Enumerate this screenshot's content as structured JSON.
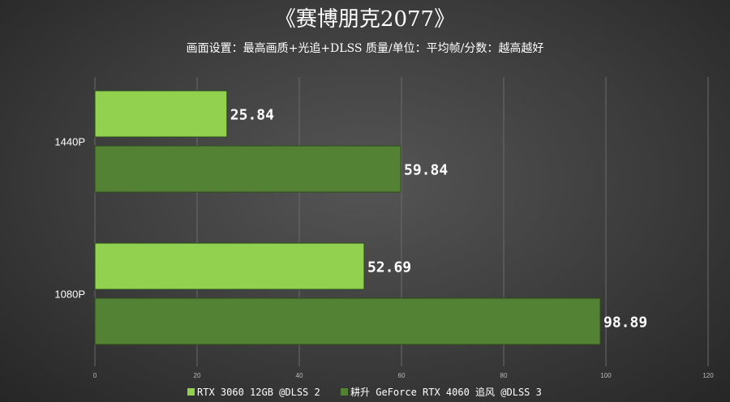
{
  "chart_data": {
    "type": "bar",
    "orientation": "horizontal",
    "title": "《赛博朋克2077》",
    "subtitle": "画面设置：最高画质+光追+DLSS 质量/单位：平均帧/分数：越高越好",
    "categories": [
      "1440P",
      "1080P"
    ],
    "series": [
      {
        "name": "RTX 3060 12GB @DLSS 2",
        "values": [
          25.84,
          52.69
        ],
        "color": "#92d050"
      },
      {
        "name": "耕升 GeForce RTX 4060 追风 @DLSS 3",
        "values": [
          59.84,
          98.89
        ],
        "color": "#548235"
      }
    ],
    "xlim": [
      0,
      120
    ],
    "xticks": [
      "0",
      "20",
      "40",
      "60",
      "80",
      "100",
      "120"
    ],
    "value_labels": [
      [
        "25.84",
        "52.69"
      ],
      [
        "59.84",
        "98.89"
      ]
    ],
    "grid": true,
    "legend_position": "bottom"
  }
}
